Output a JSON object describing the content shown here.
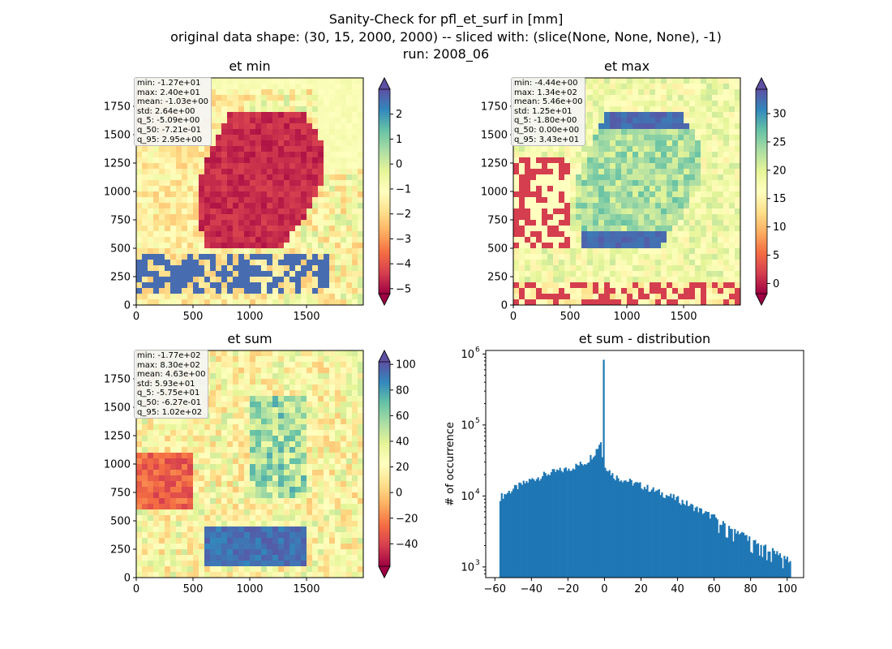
{
  "figure": {
    "title_lines": [
      "Sanity-Check for pfl_et_surf in [mm]",
      "original data shape: (30, 15, 2000, 2000) -- sliced with: (slice(None, None, None), -1)",
      "run: 2008_06"
    ]
  },
  "chart_data": [
    {
      "type": "heatmap",
      "title": "et min",
      "colormap": "Spectral",
      "x_ticks": [
        "0",
        "500",
        "1000",
        "1500"
      ],
      "y_ticks": [
        "0",
        "250",
        "500",
        "750",
        "1000",
        "1250",
        "1500",
        "1750"
      ],
      "xlim": [
        0,
        2000
      ],
      "ylim": [
        0,
        2000
      ],
      "colorbar": {
        "range": [
          -5.2,
          3.0
        ],
        "ticks": [
          "2",
          "1",
          "0",
          "−1",
          "−2",
          "−3",
          "−4",
          "−5"
        ],
        "tick_values": [
          2,
          1,
          0,
          -1,
          -2,
          -3,
          -4,
          -5
        ],
        "extend": "both"
      },
      "stats": [
        "min: -1.27e+01",
        "max: 2.40e+01",
        "mean: -1.03e+00",
        "std: 2.64e+00",
        "q_5: -5.09e+00",
        "q_50: -7.21e-01",
        "q_95: 2.95e+00"
      ]
    },
    {
      "type": "heatmap",
      "title": "et max",
      "colormap": "Spectral",
      "x_ticks": [
        "0",
        "500",
        "1000",
        "1500"
      ],
      "y_ticks": [
        "0",
        "250",
        "500",
        "750",
        "1000",
        "1250",
        "1500",
        "1750"
      ],
      "xlim": [
        0,
        2000
      ],
      "ylim": [
        0,
        2000
      ],
      "colorbar": {
        "range": [
          -1.8,
          34.3
        ],
        "ticks": [
          "30",
          "25",
          "20",
          "15",
          "10",
          "5",
          "0"
        ],
        "tick_values": [
          30,
          25,
          20,
          15,
          10,
          5,
          0
        ],
        "extend": "both"
      },
      "stats": [
        "min: -4.44e+00",
        "max: 1.34e+02",
        "mean: 5.46e+00",
        "std: 1.25e+01",
        "q_5: -1.80e+00",
        "q_50: 0.00e+00",
        "q_95: 3.43e+01"
      ]
    },
    {
      "type": "heatmap",
      "title": "et sum",
      "colormap": "Spectral",
      "x_ticks": [
        "0",
        "500",
        "1000",
        "1500"
      ],
      "y_ticks": [
        "0",
        "250",
        "500",
        "750",
        "1000",
        "1250",
        "1500",
        "1750"
      ],
      "xlim": [
        0,
        2000
      ],
      "ylim": [
        0,
        2000
      ],
      "colorbar": {
        "range": [
          -57.5,
          102
        ],
        "ticks": [
          "100",
          "80",
          "60",
          "40",
          "20",
          "0",
          "−20",
          "−40"
        ],
        "tick_values": [
          100,
          80,
          60,
          40,
          20,
          0,
          -20,
          -40
        ],
        "extend": "both"
      },
      "stats": [
        "min: -1.77e+02",
        "max: 8.30e+02",
        "mean: 4.63e+00",
        "std: 5.93e+01",
        "q_5: -5.75e+01",
        "q_50: -6.27e-01",
        "q_95: 1.02e+02"
      ]
    },
    {
      "type": "bar",
      "title": "et sum - distribution",
      "ylabel": "# of occurrence",
      "yscale": "log",
      "color": "#1f77b4",
      "xlim": [
        -65,
        109
      ],
      "ylim_log10": [
        2.85,
        6.05
      ],
      "x_ticks": [
        "−60",
        "−40",
        "−20",
        "0",
        "20",
        "40",
        "60",
        "80",
        "100"
      ],
      "x_tick_values": [
        -60,
        -40,
        -20,
        0,
        20,
        40,
        60,
        80,
        100
      ],
      "y_ticks": [
        "10",
        "10",
        "10",
        "10"
      ],
      "y_tick_exponents": [
        "3",
        "4",
        "5",
        "6"
      ],
      "y_tick_values": [
        3,
        4,
        5,
        6
      ],
      "bin_range": [
        -57.5,
        102
      ],
      "peak": {
        "x": -0.6,
        "value": 830000
      },
      "profile": [
        [
          -57.5,
          9500
        ],
        [
          -50,
          12500
        ],
        [
          -40,
          17000
        ],
        [
          -30,
          21000
        ],
        [
          -20,
          24000
        ],
        [
          -10,
          30000
        ],
        [
          -5,
          42000
        ],
        [
          -2,
          60000
        ],
        [
          -1,
          30000
        ],
        [
          5,
          19000
        ],
        [
          20,
          14000
        ],
        [
          40,
          9000
        ],
        [
          60,
          5000
        ],
        [
          80,
          2500
        ],
        [
          95,
          1600
        ],
        [
          102,
          1200
        ]
      ]
    }
  ]
}
